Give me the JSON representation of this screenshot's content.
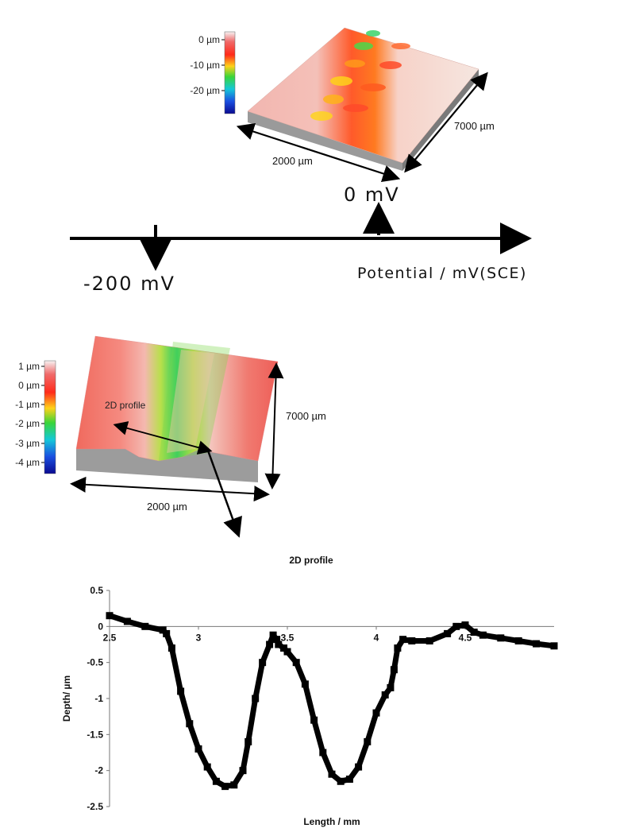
{
  "figure_top": {
    "colorbar_labels": [
      "0 µm",
      "-10 µm",
      "-20 µm"
    ],
    "width_label": "2000 µm",
    "length_label": "7000 µm",
    "potential_label": "0 mV"
  },
  "potential_axis": {
    "label": "Potential / mV(SCE)",
    "marker_low": "-200 mV"
  },
  "figure_bottom": {
    "colorbar_labels": [
      "1 µm",
      "0 µm",
      "-1 µm",
      "-2 µm",
      "-3 µm",
      "-4 µm"
    ],
    "width_label": "2000 µm",
    "length_label": "7000 µm",
    "profile_tag": "2D profile",
    "profile_caption": "2D profile"
  },
  "chart_data": {
    "type": "line",
    "title": "",
    "xlabel": "Length / mm",
    "ylabel": "Depth/ µm",
    "xlim": [
      2.5,
      5.0
    ],
    "ylim": [
      -2.5,
      0.5
    ],
    "x_ticks": [
      "2.5",
      "3",
      "3.5",
      "4",
      "4.5"
    ],
    "y_ticks": [
      "0.5",
      "0",
      "-0.5",
      "-1",
      "-1.5",
      "-2",
      "-2.5"
    ],
    "series": [
      {
        "marker": "square",
        "color": "#000000",
        "x": [
          2.5,
          2.6,
          2.7,
          2.8,
          2.82,
          2.85,
          2.9,
          2.95,
          3.0,
          3.05,
          3.1,
          3.15,
          3.2,
          3.25,
          3.28,
          3.32,
          3.36,
          3.4,
          3.42,
          3.44,
          3.45,
          3.48,
          3.5,
          3.55,
          3.6,
          3.65,
          3.7,
          3.75,
          3.8,
          3.85,
          3.9,
          3.95,
          4.0,
          4.05,
          4.08,
          4.1,
          4.12,
          4.15,
          4.2,
          4.3,
          4.4,
          4.45,
          4.5,
          4.55,
          4.6,
          4.7,
          4.8,
          4.9,
          5.0
        ],
        "y": [
          0.15,
          0.07,
          0.0,
          -0.05,
          -0.1,
          -0.3,
          -0.9,
          -1.35,
          -1.7,
          -1.95,
          -2.15,
          -2.22,
          -2.2,
          -2.0,
          -1.6,
          -1.0,
          -0.5,
          -0.25,
          -0.12,
          -0.18,
          -0.25,
          -0.3,
          -0.35,
          -0.5,
          -0.8,
          -1.3,
          -1.75,
          -2.05,
          -2.15,
          -2.12,
          -1.95,
          -1.6,
          -1.2,
          -0.95,
          -0.85,
          -0.6,
          -0.3,
          -0.18,
          -0.2,
          -0.2,
          -0.1,
          0.0,
          0.02,
          -0.08,
          -0.12,
          -0.16,
          -0.2,
          -0.24,
          -0.27
        ]
      }
    ]
  }
}
